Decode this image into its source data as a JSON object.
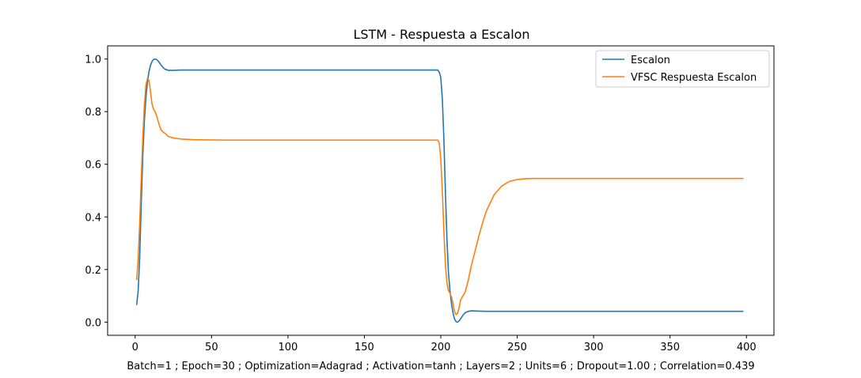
{
  "chart_data": {
    "type": "line",
    "title": "LSTM - Respuesta a Escalon",
    "xlabel": "Batch=1 ; Epoch=30 ; Optimization=Adagrad ; Activation=tanh ; Layers=2 ; Units=6 ; Dropout=1.00 ; Correlation=0.439",
    "ylabel": "",
    "xlim": [
      -18,
      418
    ],
    "ylim": [
      -0.05,
      1.05
    ],
    "xticks": [
      0,
      50,
      100,
      150,
      200,
      250,
      300,
      350,
      400
    ],
    "yticks": [
      0.0,
      0.2,
      0.4,
      0.6,
      0.8,
      1.0
    ],
    "xtick_labels": [
      "0",
      "50",
      "100",
      "150",
      "200",
      "250",
      "300",
      "350",
      "400"
    ],
    "ytick_labels": [
      "0.0",
      "0.2",
      "0.4",
      "0.6",
      "0.8",
      "1.0"
    ],
    "grid": false,
    "legend_position": "top-right",
    "series": [
      {
        "name": "Escalon",
        "color": "#1f77b4",
        "points": [
          [
            1,
            0.065
          ],
          [
            2,
            0.12
          ],
          [
            3,
            0.25
          ],
          [
            4,
            0.45
          ],
          [
            5,
            0.63
          ],
          [
            6,
            0.76
          ],
          [
            7,
            0.85
          ],
          [
            8,
            0.91
          ],
          [
            9,
            0.95
          ],
          [
            10,
            0.975
          ],
          [
            11,
            0.99
          ],
          [
            12,
            0.998
          ],
          [
            13,
            1.0
          ],
          [
            14,
            0.998
          ],
          [
            15,
            0.993
          ],
          [
            16,
            0.985
          ],
          [
            17,
            0.977
          ],
          [
            18,
            0.97
          ],
          [
            19,
            0.964
          ],
          [
            20,
            0.96
          ],
          [
            22,
            0.957
          ],
          [
            25,
            0.957
          ],
          [
            30,
            0.958
          ],
          [
            40,
            0.958
          ],
          [
            100,
            0.958
          ],
          [
            150,
            0.958
          ],
          [
            198,
            0.958
          ],
          [
            199,
            0.95
          ],
          [
            200,
            0.93
          ],
          [
            201,
            0.85
          ],
          [
            202,
            0.7
          ],
          [
            203,
            0.5
          ],
          [
            204,
            0.32
          ],
          [
            205,
            0.19
          ],
          [
            206,
            0.12
          ],
          [
            207,
            0.07
          ],
          [
            208,
            0.035
          ],
          [
            209,
            0.012
          ],
          [
            210,
            0.002
          ],
          [
            211,
            0.0
          ],
          [
            212,
            0.005
          ],
          [
            213,
            0.013
          ],
          [
            214,
            0.022
          ],
          [
            215,
            0.03
          ],
          [
            216,
            0.036
          ],
          [
            218,
            0.041
          ],
          [
            220,
            0.043
          ],
          [
            225,
            0.042
          ],
          [
            230,
            0.041
          ],
          [
            260,
            0.041
          ],
          [
            300,
            0.041
          ],
          [
            350,
            0.041
          ],
          [
            398,
            0.041
          ]
        ]
      },
      {
        "name": "VFSC Respuesta Escalon",
        "color": "#ff7f0e",
        "points": [
          [
            1,
            0.16
          ],
          [
            2,
            0.24
          ],
          [
            3,
            0.38
          ],
          [
            4,
            0.55
          ],
          [
            5,
            0.7
          ],
          [
            6,
            0.82
          ],
          [
            7,
            0.9
          ],
          [
            8,
            0.925
          ],
          [
            9,
            0.92
          ],
          [
            10,
            0.88
          ],
          [
            11,
            0.83
          ],
          [
            12,
            0.81
          ],
          [
            13,
            0.8
          ],
          [
            14,
            0.785
          ],
          [
            15,
            0.765
          ],
          [
            16,
            0.745
          ],
          [
            17,
            0.73
          ],
          [
            18,
            0.724
          ],
          [
            19,
            0.72
          ],
          [
            20,
            0.716
          ],
          [
            21,
            0.709
          ],
          [
            22,
            0.705
          ],
          [
            25,
            0.7
          ],
          [
            30,
            0.696
          ],
          [
            40,
            0.693
          ],
          [
            60,
            0.692
          ],
          [
            100,
            0.692
          ],
          [
            150,
            0.692
          ],
          [
            198,
            0.692
          ],
          [
            199,
            0.68
          ],
          [
            200,
            0.62
          ],
          [
            201,
            0.5
          ],
          [
            202,
            0.35
          ],
          [
            203,
            0.22
          ],
          [
            204,
            0.15
          ],
          [
            205,
            0.12
          ],
          [
            206,
            0.11
          ],
          [
            207,
            0.095
          ],
          [
            208,
            0.07
          ],
          [
            209,
            0.04
          ],
          [
            210,
            0.028
          ],
          [
            211,
            0.035
          ],
          [
            212,
            0.055
          ],
          [
            213,
            0.085
          ],
          [
            215,
            0.105
          ],
          [
            216,
            0.115
          ],
          [
            218,
            0.16
          ],
          [
            220,
            0.215
          ],
          [
            222,
            0.26
          ],
          [
            225,
            0.33
          ],
          [
            228,
            0.39
          ],
          [
            230,
            0.425
          ],
          [
            235,
            0.485
          ],
          [
            240,
            0.518
          ],
          [
            245,
            0.535
          ],
          [
            250,
            0.542
          ],
          [
            255,
            0.545
          ],
          [
            260,
            0.546
          ],
          [
            300,
            0.546
          ],
          [
            350,
            0.546
          ],
          [
            398,
            0.546
          ]
        ]
      }
    ]
  }
}
